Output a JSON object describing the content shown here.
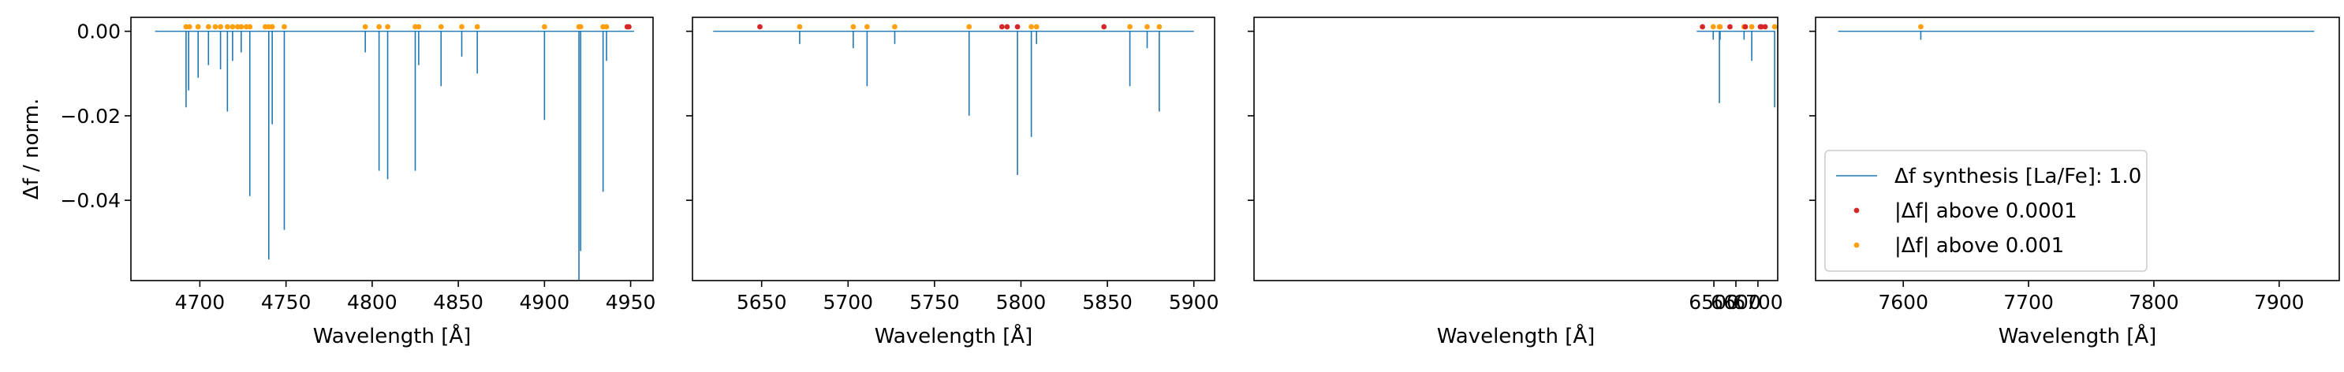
{
  "chart_data": [
    {
      "type": "line",
      "xlabel": "Wavelength [Å]",
      "ylabel": "Δf / norm.",
      "xlim": [
        4660,
        4963
      ],
      "ylim": [
        -0.059,
        0.0033
      ],
      "xticks": [
        4700,
        4750,
        4800,
        4850,
        4900,
        4950
      ],
      "yticks": [
        0.0,
        -0.02,
        -0.04
      ],
      "ytick_labels": [
        "0.00",
        "−0.02",
        "−0.04"
      ],
      "show_ytick_labels": true,
      "line_range": [
        4674,
        4952
      ],
      "lines": [
        {
          "x": 4692,
          "y": -0.018
        },
        {
          "x": 4693.5,
          "y": -0.014
        },
        {
          "x": 4699,
          "y": -0.011
        },
        {
          "x": 4705,
          "y": -0.008
        },
        {
          "x": 4712,
          "y": -0.009
        },
        {
          "x": 4716,
          "y": -0.019
        },
        {
          "x": 4719,
          "y": -0.007
        },
        {
          "x": 4724,
          "y": -0.005
        },
        {
          "x": 4729,
          "y": -0.039
        },
        {
          "x": 4740,
          "y": -0.054
        },
        {
          "x": 4742,
          "y": -0.022
        },
        {
          "x": 4749,
          "y": -0.047
        },
        {
          "x": 4796,
          "y": -0.005
        },
        {
          "x": 4804,
          "y": -0.033
        },
        {
          "x": 4809,
          "y": -0.035
        },
        {
          "x": 4825,
          "y": -0.033
        },
        {
          "x": 4827,
          "y": -0.008
        },
        {
          "x": 4840,
          "y": -0.013
        },
        {
          "x": 4852,
          "y": -0.006
        },
        {
          "x": 4861,
          "y": -0.01
        },
        {
          "x": 4900,
          "y": -0.021
        },
        {
          "x": 4920,
          "y": -0.059
        },
        {
          "x": 4921,
          "y": -0.052
        },
        {
          "x": 4934,
          "y": -0.038
        },
        {
          "x": 4936,
          "y": -0.007
        }
      ],
      "markers_red": [
        4948,
        4949
      ],
      "markers_orange": [
        4692,
        4694,
        4699,
        4705,
        4709,
        4712,
        4716,
        4719,
        4722,
        4724,
        4727,
        4729,
        4738,
        4740,
        4742,
        4749,
        4796,
        4804,
        4809,
        4825,
        4827,
        4840,
        4852,
        4861,
        4900,
        4920,
        4921,
        4934,
        4936
      ],
      "legend": null
    },
    {
      "type": "line",
      "xlabel": "Wavelength [Å]",
      "ylabel": "",
      "xlim": [
        5610,
        5912
      ],
      "ylim": [
        -0.059,
        0.0033
      ],
      "xticks": [
        5650,
        5700,
        5750,
        5800,
        5850,
        5900
      ],
      "yticks": [
        0.0,
        -0.02,
        -0.04
      ],
      "ytick_labels": [
        "",
        "",
        ""
      ],
      "show_ytick_labels": false,
      "line_range": [
        5622,
        5900
      ],
      "lines": [
        {
          "x": 5672,
          "y": -0.003
        },
        {
          "x": 5703,
          "y": -0.004
        },
        {
          "x": 5711,
          "y": -0.013
        },
        {
          "x": 5727,
          "y": -0.003
        },
        {
          "x": 5770,
          "y": -0.02
        },
        {
          "x": 5798,
          "y": -0.034
        },
        {
          "x": 5806,
          "y": -0.025
        },
        {
          "x": 5809,
          "y": -0.003
        },
        {
          "x": 5863,
          "y": -0.013
        },
        {
          "x": 5873,
          "y": -0.004
        },
        {
          "x": 5880,
          "y": -0.019
        }
      ],
      "markers_red": [
        5649,
        5789,
        5792,
        5798,
        5848
      ],
      "markers_orange": [
        5672,
        5703,
        5711,
        5727,
        5770,
        5806,
        5809,
        5863,
        5873,
        5880
      ],
      "legend": null
    },
    {
      "type": "line",
      "xlabel": "Wavelength [Å]",
      "ylabel": "",
      "xlim": [
        4410,
        6790
      ],
      "ylim": [
        -0.059,
        0.0033
      ],
      "xticks": [
        6500,
        6600,
        6700
      ],
      "yticks": [
        0.0,
        -0.02,
        -0.04
      ],
      "ytick_labels": [
        "",
        "",
        ""
      ],
      "show_ytick_labels": false,
      "line_range": [
        6422,
        6778
      ],
      "lines": [
        {
          "x": 6497,
          "y": -0.002
        },
        {
          "x": 6525,
          "y": -0.017
        },
        {
          "x": 6528,
          "y": -0.002
        },
        {
          "x": 6637,
          "y": -0.002
        },
        {
          "x": 6672,
          "y": -0.007
        },
        {
          "x": 6776,
          "y": -0.018
        }
      ],
      "markers_red": [
        6448,
        6573,
        6643,
        6711,
        6716,
        6733
      ],
      "markers_orange": [
        6497,
        6525,
        6528,
        6637,
        6672,
        6776
      ],
      "legend": null
    },
    {
      "type": "line",
      "xlabel": "Wavelength [Å]",
      "ylabel": "",
      "xlim": [
        7530,
        7948
      ],
      "ylim": [
        -0.059,
        0.0033
      ],
      "xticks": [
        7600,
        7700,
        7800,
        7900
      ],
      "yticks": [
        0.0,
        -0.02,
        -0.04
      ],
      "ytick_labels": [
        "",
        "",
        ""
      ],
      "show_ytick_labels": false,
      "line_range": [
        7548,
        7928
      ],
      "lines": [
        {
          "x": 7614,
          "y": -0.002
        }
      ],
      "markers_red": [],
      "markers_orange": [
        7614
      ],
      "legend": {
        "location": "lower-left",
        "entries": [
          {
            "label": "Δf synthesis [La/Fe]: 1.0",
            "kind": "line",
            "color": "#1f77b4"
          },
          {
            "label": "|Δf| above 0.0001",
            "kind": "dot",
            "color": "#d62728"
          },
          {
            "label": "|Δf| above 0.001",
            "kind": "dot",
            "color": "#ff9f0e"
          }
        ]
      }
    }
  ],
  "colors": {
    "line": "#1f77b4",
    "marker_red": "#d62728",
    "marker_orange": "#ff9f0e"
  }
}
